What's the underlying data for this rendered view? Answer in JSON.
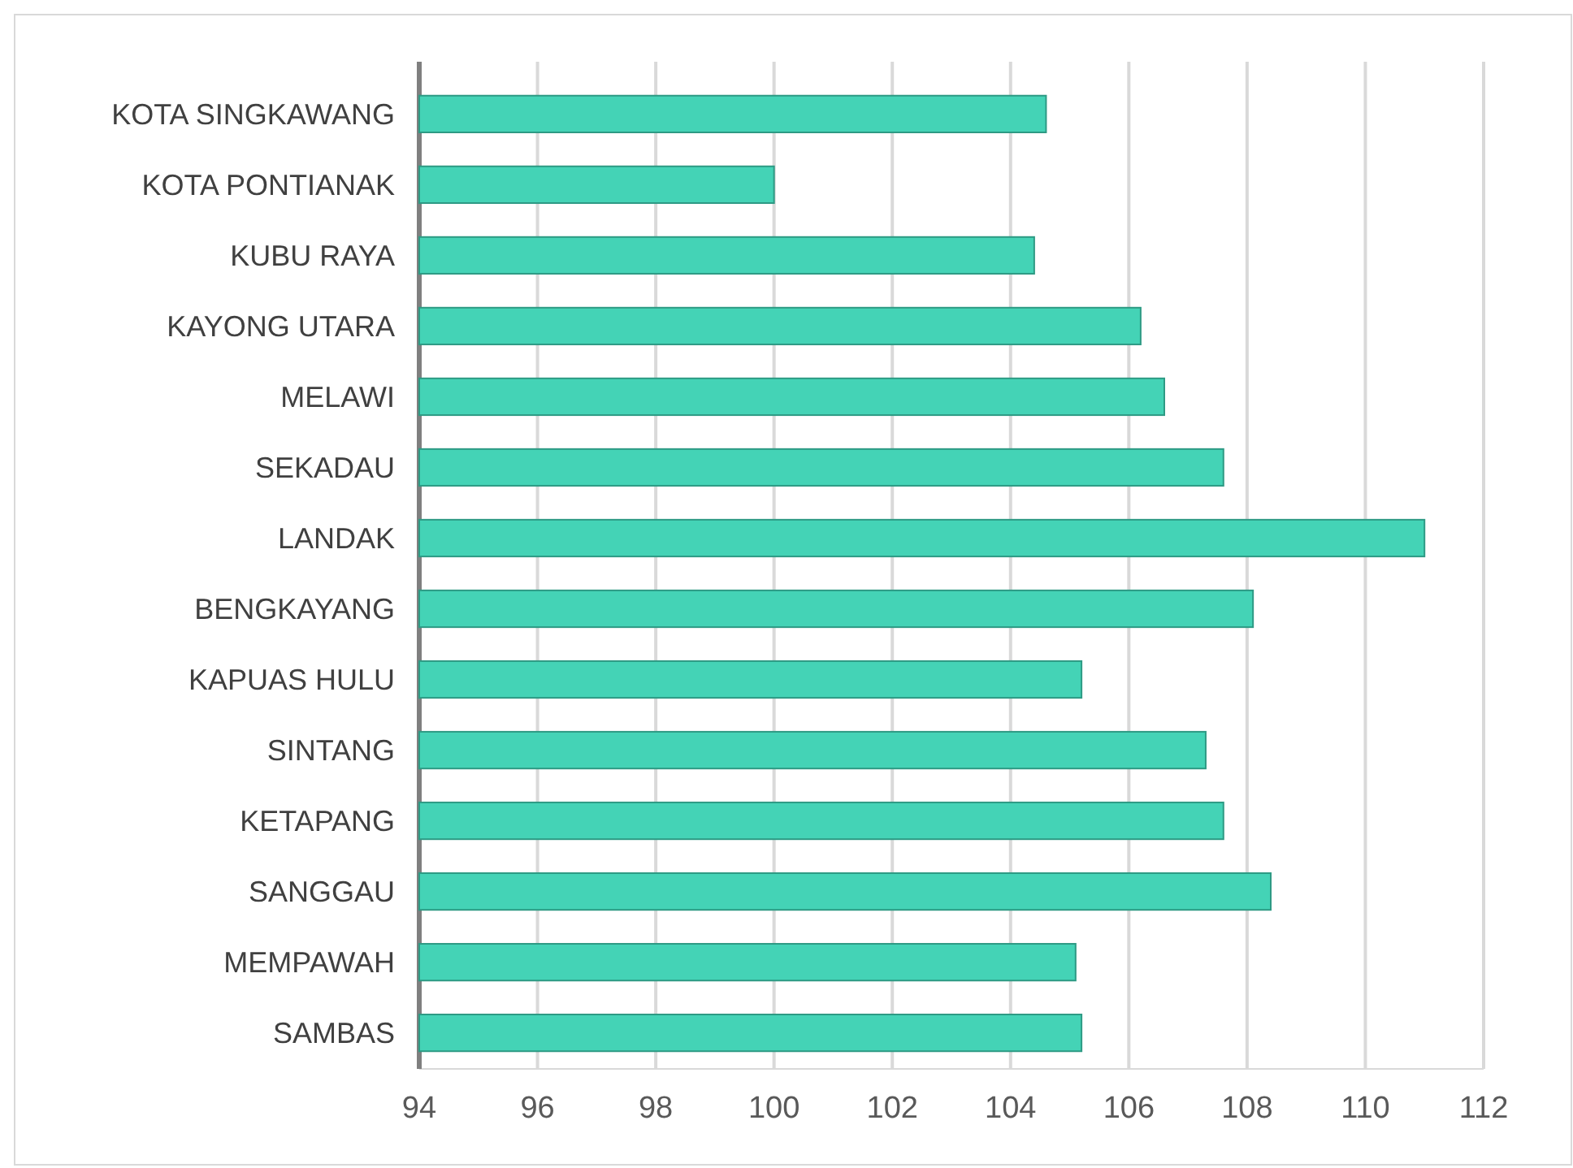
{
  "chart_data": {
    "type": "bar",
    "orientation": "horizontal",
    "categories": [
      "KOTA SINGKAWANG",
      "KOTA PONTIANAK",
      "KUBU RAYA",
      "KAYONG UTARA",
      "MELAWI",
      "SEKADAU",
      "LANDAK",
      "BENGKAYANG",
      "KAPUAS HULU",
      "SINTANG",
      "KETAPANG",
      "SANGGAU",
      "MEMPAWAH",
      "SAMBAS"
    ],
    "values": [
      104.6,
      100.0,
      104.4,
      106.2,
      106.6,
      107.6,
      111.0,
      108.1,
      105.2,
      107.3,
      107.6,
      108.4,
      105.1,
      105.2
    ],
    "color": "#44d3b6",
    "xlim": [
      94,
      112
    ],
    "xticks": [
      94,
      96,
      98,
      100,
      102,
      104,
      106,
      108,
      110,
      112
    ],
    "grid": "x"
  }
}
